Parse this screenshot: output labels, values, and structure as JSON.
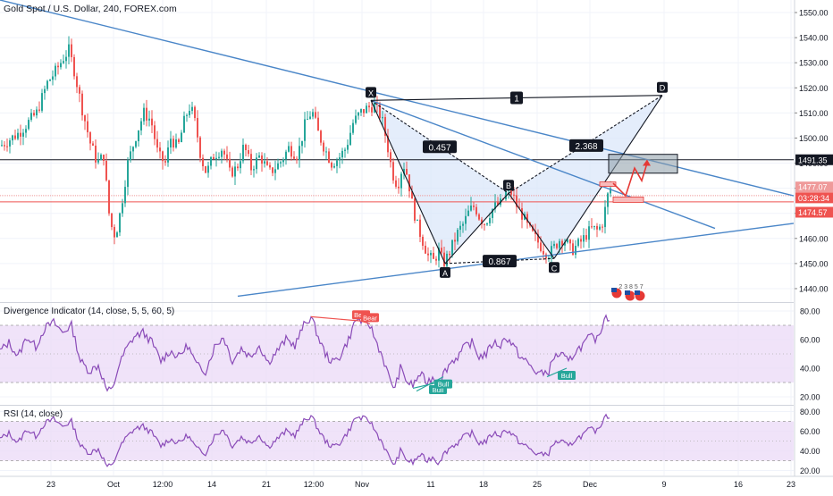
{
  "header": {
    "title": "Gold Spot / U.S. Dollar, 240, FOREX.com"
  },
  "panes": {
    "divergence_title": "Divergence Indicator (14, close, 5, 5, 60, 5)",
    "rsi_title": "RSI (14, close)"
  },
  "colors": {
    "up_candle": "#26a69a",
    "down_candle": "#ef5350",
    "trendline": "#4a86c8",
    "pattern_fill": "#dbe7f9",
    "indicator_line": "#8a4bb8",
    "indicator_band": "#ecdcf8",
    "bear_label": "#ef5350",
    "bull_label": "#26a69a",
    "price_tag_dark": "#131722",
    "price_tag_red": "#ef5350",
    "projection_line": "#e53935",
    "target_box": "#8a9aa6"
  },
  "chart_data": [
    {
      "type": "candlestick",
      "title": "Gold Spot / U.S. Dollar, 240, FOREX.com",
      "x_tick_labels": [
        "23",
        "Oct",
        "12:00",
        "14",
        "21",
        "12:00",
        "Nov",
        "11",
        "18",
        "25",
        "Dec",
        "9",
        "16",
        "23"
      ],
      "y_tick_labels": [
        1440,
        1450,
        1460,
        1470,
        1480,
        1490,
        1500,
        1510,
        1520,
        1530,
        1540,
        1550
      ],
      "ylim": [
        1435,
        1555
      ],
      "price_path": [
        [
          0,
          1497
        ],
        [
          20,
          1502
        ],
        [
          40,
          1510
        ],
        [
          52,
          1522
        ],
        [
          62,
          1527
        ],
        [
          70,
          1532
        ],
        [
          76,
          1535
        ],
        [
          82,
          1527
        ],
        [
          90,
          1513
        ],
        [
          100,
          1498
        ],
        [
          108,
          1490
        ],
        [
          115,
          1493
        ],
        [
          121,
          1470
        ],
        [
          126,
          1461
        ],
        [
          131,
          1465
        ],
        [
          136,
          1476
        ],
        [
          142,
          1490
        ],
        [
          152,
          1502
        ],
        [
          160,
          1510
        ],
        [
          168,
          1507
        ],
        [
          176,
          1493
        ],
        [
          184,
          1490
        ],
        [
          190,
          1500
        ],
        [
          198,
          1496
        ],
        [
          206,
          1508
        ],
        [
          212,
          1513
        ],
        [
          218,
          1505
        ],
        [
          224,
          1492
        ],
        [
          230,
          1486
        ],
        [
          238,
          1493
        ],
        [
          248,
          1496
        ],
        [
          256,
          1486
        ],
        [
          264,
          1488
        ],
        [
          272,
          1497
        ],
        [
          280,
          1488
        ],
        [
          290,
          1493
        ],
        [
          300,
          1486
        ],
        [
          312,
          1490
        ],
        [
          322,
          1496
        ],
        [
          332,
          1493
        ],
        [
          340,
          1505
        ],
        [
          348,
          1511
        ],
        [
          355,
          1502
        ],
        [
          362,
          1496
        ],
        [
          370,
          1490
        ],
        [
          378,
          1492
        ],
        [
          386,
          1496
        ],
        [
          394,
          1506
        ],
        [
          402,
          1510
        ],
        [
          410,
          1512
        ],
        [
          418,
          1513
        ],
        [
          426,
          1508
        ],
        [
          432,
          1498
        ],
        [
          438,
          1486
        ],
        [
          444,
          1481
        ],
        [
          450,
          1490
        ],
        [
          455,
          1485
        ],
        [
          460,
          1474
        ],
        [
          466,
          1465
        ],
        [
          472,
          1459
        ],
        [
          478,
          1453
        ],
        [
          484,
          1451
        ],
        [
          490,
          1455
        ],
        [
          495,
          1450
        ],
        [
          500,
          1453
        ],
        [
          506,
          1458
        ],
        [
          512,
          1463
        ],
        [
          518,
          1466
        ],
        [
          524,
          1471
        ],
        [
          530,
          1473
        ],
        [
          536,
          1468
        ],
        [
          542,
          1466
        ],
        [
          548,
          1471
        ],
        [
          554,
          1473
        ],
        [
          560,
          1474
        ],
        [
          566,
          1479
        ],
        [
          572,
          1478
        ],
        [
          578,
          1472
        ],
        [
          584,
          1469
        ],
        [
          590,
          1464
        ],
        [
          596,
          1461
        ],
        [
          602,
          1458
        ],
        [
          608,
          1455
        ],
        [
          614,
          1454
        ],
        [
          620,
          1457
        ],
        [
          626,
          1460
        ],
        [
          632,
          1459
        ],
        [
          638,
          1455
        ],
        [
          644,
          1457
        ],
        [
          650,
          1459
        ],
        [
          656,
          1462
        ],
        [
          662,
          1464
        ],
        [
          668,
          1463
        ],
        [
          674,
          1467
        ],
        [
          678,
          1476
        ],
        [
          682,
          1480
        ]
      ],
      "y_current_price": 1474.57,
      "countdown": "03:28:34",
      "labels": {
        "price_line_level": "1491.35",
        "level_upper": "1477.07",
        "level_lower": "1474.57",
        "countdown": "03:28:34"
      },
      "harmonic_pattern": {
        "points": [
          {
            "label": "X",
            "price": 1515
          },
          {
            "label": "A",
            "price": 1450
          },
          {
            "label": "B",
            "price": 1478
          },
          {
            "label": "C",
            "price": 1452
          },
          {
            "label": "D",
            "price": 1517
          }
        ],
        "ratios": [
          "0.457",
          "0.867",
          "2.368",
          "1"
        ]
      },
      "trendlines": [
        {
          "from_price": 1555,
          "to_price": 1477
        },
        {
          "from_price": 1515,
          "to_price": 1464
        },
        {
          "from_price": 1437,
          "to_price": 1466
        }
      ],
      "projection_path": [
        [
          686,
          1482
        ],
        [
          700,
          1477
        ],
        [
          710,
          1488
        ],
        [
          718,
          1483
        ],
        [
          724,
          1490
        ]
      ],
      "currency_icon_text": "2 3 8 5 7"
    },
    {
      "type": "line",
      "title": "Divergence Indicator (14, close, 5, 5, 60, 5)",
      "y_tick_labels": [
        20.0,
        40.0,
        60.0,
        80.0
      ],
      "ylim": [
        15,
        85
      ],
      "band": [
        30,
        70
      ],
      "midline": 50,
      "series": [
        {
          "values_path": [
            [
              0,
              52
            ],
            [
              10,
              58
            ],
            [
              20,
              48
            ],
            [
              30,
              62
            ],
            [
              40,
              55
            ],
            [
              50,
              68
            ],
            [
              60,
              72
            ],
            [
              70,
              65
            ],
            [
              80,
              70
            ],
            [
              90,
              45
            ],
            [
              100,
              38
            ],
            [
              110,
              42
            ],
            [
              120,
              24
            ],
            [
              126,
              25
            ],
            [
              132,
              40
            ],
            [
              140,
              52
            ],
            [
              150,
              62
            ],
            [
              160,
              65
            ],
            [
              170,
              58
            ],
            [
              180,
              45
            ],
            [
              190,
              52
            ],
            [
              200,
              48
            ],
            [
              210,
              56
            ],
            [
              220,
              42
            ],
            [
              230,
              38
            ],
            [
              240,
              55
            ],
            [
              250,
              62
            ],
            [
              260,
              45
            ],
            [
              270,
              54
            ],
            [
              280,
              48
            ],
            [
              290,
              56
            ],
            [
              300,
              44
            ],
            [
              310,
              52
            ],
            [
              320,
              60
            ],
            [
              330,
              56
            ],
            [
              340,
              70
            ],
            [
              348,
              76
            ],
            [
              356,
              62
            ],
            [
              364,
              50
            ],
            [
              372,
              44
            ],
            [
              380,
              48
            ],
            [
              390,
              60
            ],
            [
              398,
              74
            ],
            [
              406,
              73
            ],
            [
              414,
              70
            ],
            [
              420,
              60
            ],
            [
              428,
              48
            ],
            [
              436,
              32
            ],
            [
              442,
              26
            ],
            [
              448,
              40
            ],
            [
              456,
              30
            ],
            [
              462,
              28
            ],
            [
              470,
              36
            ],
            [
              478,
              30
            ],
            [
              484,
              34
            ],
            [
              490,
              28
            ],
            [
              496,
              36
            ],
            [
              504,
              44
            ],
            [
              512,
              48
            ],
            [
              520,
              55
            ],
            [
              528,
              58
            ],
            [
              536,
              48
            ],
            [
              544,
              50
            ],
            [
              552,
              58
            ],
            [
              560,
              56
            ],
            [
              566,
              62
            ],
            [
              574,
              56
            ],
            [
              582,
              48
            ],
            [
              590,
              44
            ],
            [
              598,
              38
            ],
            [
              606,
              36
            ],
            [
              614,
              38
            ],
            [
              620,
              48
            ],
            [
              628,
              50
            ],
            [
              636,
              44
            ],
            [
              644,
              52
            ],
            [
              652,
              56
            ],
            [
              660,
              62
            ],
            [
              668,
              60
            ],
            [
              674,
              70
            ],
            [
              678,
              78
            ],
            [
              682,
              74
            ]
          ]
        }
      ],
      "divergences": [
        {
          "kind": "Bear",
          "from": 348,
          "to": 404,
          "from_value": 76,
          "to_value": 73
        },
        {
          "kind": "Bear",
          "from": 404,
          "to": 414,
          "from_value": 73,
          "to_value": 71
        },
        {
          "kind": "Bull",
          "from": 462,
          "to": 490,
          "from_value": 26,
          "to_value": 30
        },
        {
          "kind": "Bull",
          "from": 466,
          "to": 496,
          "from_value": 24,
          "to_value": 34
        },
        {
          "kind": "Bull",
          "from": 612,
          "to": 634,
          "from_value": 34,
          "to_value": 40
        }
      ]
    },
    {
      "type": "line",
      "title": "RSI (14, close)",
      "y_tick_labels": [
        20.0,
        40.0,
        60.0,
        80.0
      ],
      "ylim": [
        15,
        85
      ],
      "band": [
        30,
        70
      ],
      "midline": 50,
      "series": [
        {
          "values_path": [
            [
              0,
              52
            ],
            [
              10,
              58
            ],
            [
              20,
              48
            ],
            [
              30,
              62
            ],
            [
              40,
              55
            ],
            [
              50,
              68
            ],
            [
              60,
              72
            ],
            [
              70,
              65
            ],
            [
              80,
              70
            ],
            [
              90,
              45
            ],
            [
              100,
              38
            ],
            [
              110,
              42
            ],
            [
              120,
              24
            ],
            [
              126,
              25
            ],
            [
              132,
              40
            ],
            [
              140,
              52
            ],
            [
              150,
              62
            ],
            [
              160,
              65
            ],
            [
              170,
              58
            ],
            [
              180,
              45
            ],
            [
              190,
              52
            ],
            [
              200,
              48
            ],
            [
              210,
              56
            ],
            [
              220,
              42
            ],
            [
              230,
              38
            ],
            [
              240,
              55
            ],
            [
              250,
              62
            ],
            [
              260,
              45
            ],
            [
              270,
              54
            ],
            [
              280,
              48
            ],
            [
              290,
              56
            ],
            [
              300,
              44
            ],
            [
              310,
              52
            ],
            [
              320,
              60
            ],
            [
              330,
              56
            ],
            [
              340,
              70
            ],
            [
              348,
              76
            ],
            [
              356,
              62
            ],
            [
              364,
              50
            ],
            [
              372,
              44
            ],
            [
              380,
              48
            ],
            [
              390,
              60
            ],
            [
              398,
              74
            ],
            [
              406,
              73
            ],
            [
              414,
              70
            ],
            [
              420,
              60
            ],
            [
              428,
              48
            ],
            [
              436,
              32
            ],
            [
              442,
              26
            ],
            [
              448,
              40
            ],
            [
              456,
              30
            ],
            [
              462,
              28
            ],
            [
              470,
              36
            ],
            [
              478,
              30
            ],
            [
              484,
              34
            ],
            [
              490,
              28
            ],
            [
              496,
              36
            ],
            [
              504,
              44
            ],
            [
              512,
              48
            ],
            [
              520,
              55
            ],
            [
              528,
              58
            ],
            [
              536,
              48
            ],
            [
              544,
              50
            ],
            [
              552,
              58
            ],
            [
              560,
              56
            ],
            [
              566,
              62
            ],
            [
              574,
              56
            ],
            [
              582,
              48
            ],
            [
              590,
              44
            ],
            [
              598,
              38
            ],
            [
              606,
              36
            ],
            [
              614,
              38
            ],
            [
              620,
              48
            ],
            [
              628,
              50
            ],
            [
              636,
              44
            ],
            [
              644,
              52
            ],
            [
              652,
              56
            ],
            [
              660,
              62
            ],
            [
              668,
              60
            ],
            [
              674,
              70
            ],
            [
              678,
              78
            ],
            [
              682,
              74
            ]
          ]
        }
      ]
    }
  ]
}
